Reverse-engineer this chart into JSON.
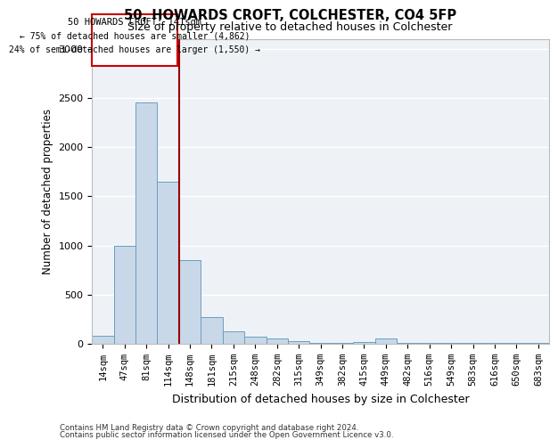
{
  "title1": "50, HOWARDS CROFT, COLCHESTER, CO4 5FP",
  "title2": "Size of property relative to detached houses in Colchester",
  "xlabel": "Distribution of detached houses by size in Colchester",
  "ylabel": "Number of detached properties",
  "categories": [
    "14sqm",
    "47sqm",
    "81sqm",
    "114sqm",
    "148sqm",
    "181sqm",
    "215sqm",
    "248sqm",
    "282sqm",
    "315sqm",
    "349sqm",
    "382sqm",
    "415sqm",
    "449sqm",
    "482sqm",
    "516sqm",
    "549sqm",
    "583sqm",
    "616sqm",
    "650sqm",
    "683sqm"
  ],
  "values": [
    80,
    1000,
    2450,
    1650,
    850,
    275,
    130,
    70,
    50,
    25,
    5,
    5,
    15,
    55,
    5,
    5,
    5,
    5,
    5,
    5,
    5
  ],
  "bar_color": "#c8d8e8",
  "bar_edge_color": "#6a9fc0",
  "vline_color": "#990000",
  "box_text_line1": "50 HOWARDS CROFT: 141sqm",
  "box_text_line2": "← 75% of detached houses are smaller (4,862)",
  "box_text_line3": "24% of semi-detached houses are larger (1,550) →",
  "box_edge_color": "#cc0000",
  "ylim": [
    0,
    3100
  ],
  "yticks": [
    0,
    500,
    1000,
    1500,
    2000,
    2500,
    3000
  ],
  "footer1": "Contains HM Land Registry data © Crown copyright and database right 2024.",
  "footer2": "Contains public sector information licensed under the Open Government Licence v3.0.",
  "bg_color": "#eef2f7"
}
